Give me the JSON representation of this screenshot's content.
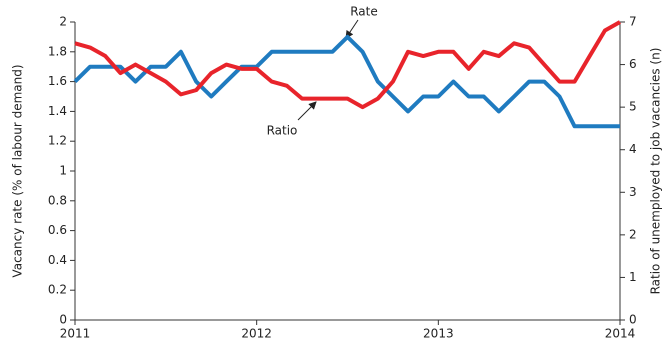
{
  "chart_data": {
    "type": "line",
    "x": [
      2011,
      2011.083,
      2011.167,
      2011.25,
      2011.333,
      2011.417,
      2011.5,
      2011.583,
      2011.667,
      2011.75,
      2011.833,
      2011.917,
      2012,
      2012.083,
      2012.167,
      2012.25,
      2012.333,
      2012.417,
      2012.5,
      2012.583,
      2012.667,
      2012.75,
      2012.833,
      2012.917,
      2013,
      2013.083,
      2013.167,
      2013.25,
      2013.333,
      2013.417,
      2013.5,
      2013.583,
      2013.667,
      2013.75,
      2013.833,
      2013.917,
      2014
    ],
    "series": [
      {
        "name": "Rate",
        "color": "#1f7bc0",
        "values": [
          1.6,
          1.7,
          1.7,
          1.7,
          1.6,
          1.7,
          1.7,
          1.8,
          1.6,
          1.5,
          1.6,
          1.7,
          1.7,
          1.8,
          1.8,
          1.8,
          1.8,
          1.8,
          1.9,
          1.8,
          1.6,
          1.5,
          1.4,
          1.5,
          1.5,
          1.6,
          1.5,
          1.5,
          1.4,
          1.5,
          1.6,
          1.6,
          1.5,
          1.3,
          1.3,
          1.3,
          1.3
        ]
      },
      {
        "name": "Ratio",
        "color": "#e8242b",
        "axis": "y2",
        "values": [
          6.5,
          6.4,
          6.2,
          5.8,
          6.0,
          5.8,
          5.6,
          5.3,
          5.4,
          5.8,
          6.0,
          5.9,
          5.9,
          5.6,
          5.5,
          5.2,
          5.2,
          5.2,
          5.2,
          5.0,
          5.2,
          5.6,
          6.3,
          6.2,
          6.3,
          6.3,
          5.9,
          6.3,
          6.2,
          6.5,
          6.4,
          6.0,
          5.6,
          5.6,
          6.2,
          6.8,
          7.0
        ]
      }
    ],
    "xlim": [
      2011,
      2014
    ],
    "xticks": [
      2011,
      2012,
      2013,
      2014
    ],
    "ylim": [
      0,
      2
    ],
    "yticks": [
      0,
      0.2,
      0.4,
      0.6,
      0.8,
      1,
      1.2,
      1.4,
      1.6,
      1.8,
      2
    ],
    "y2lim": [
      0,
      7
    ],
    "y2ticks": [
      0,
      1,
      2,
      3,
      4,
      5,
      6,
      7
    ],
    "ylabel": "Vacancy rate (% of labour demand)",
    "y2label": "Ratio of unemployed to job vacancies (n)",
    "grid": false
  }
}
